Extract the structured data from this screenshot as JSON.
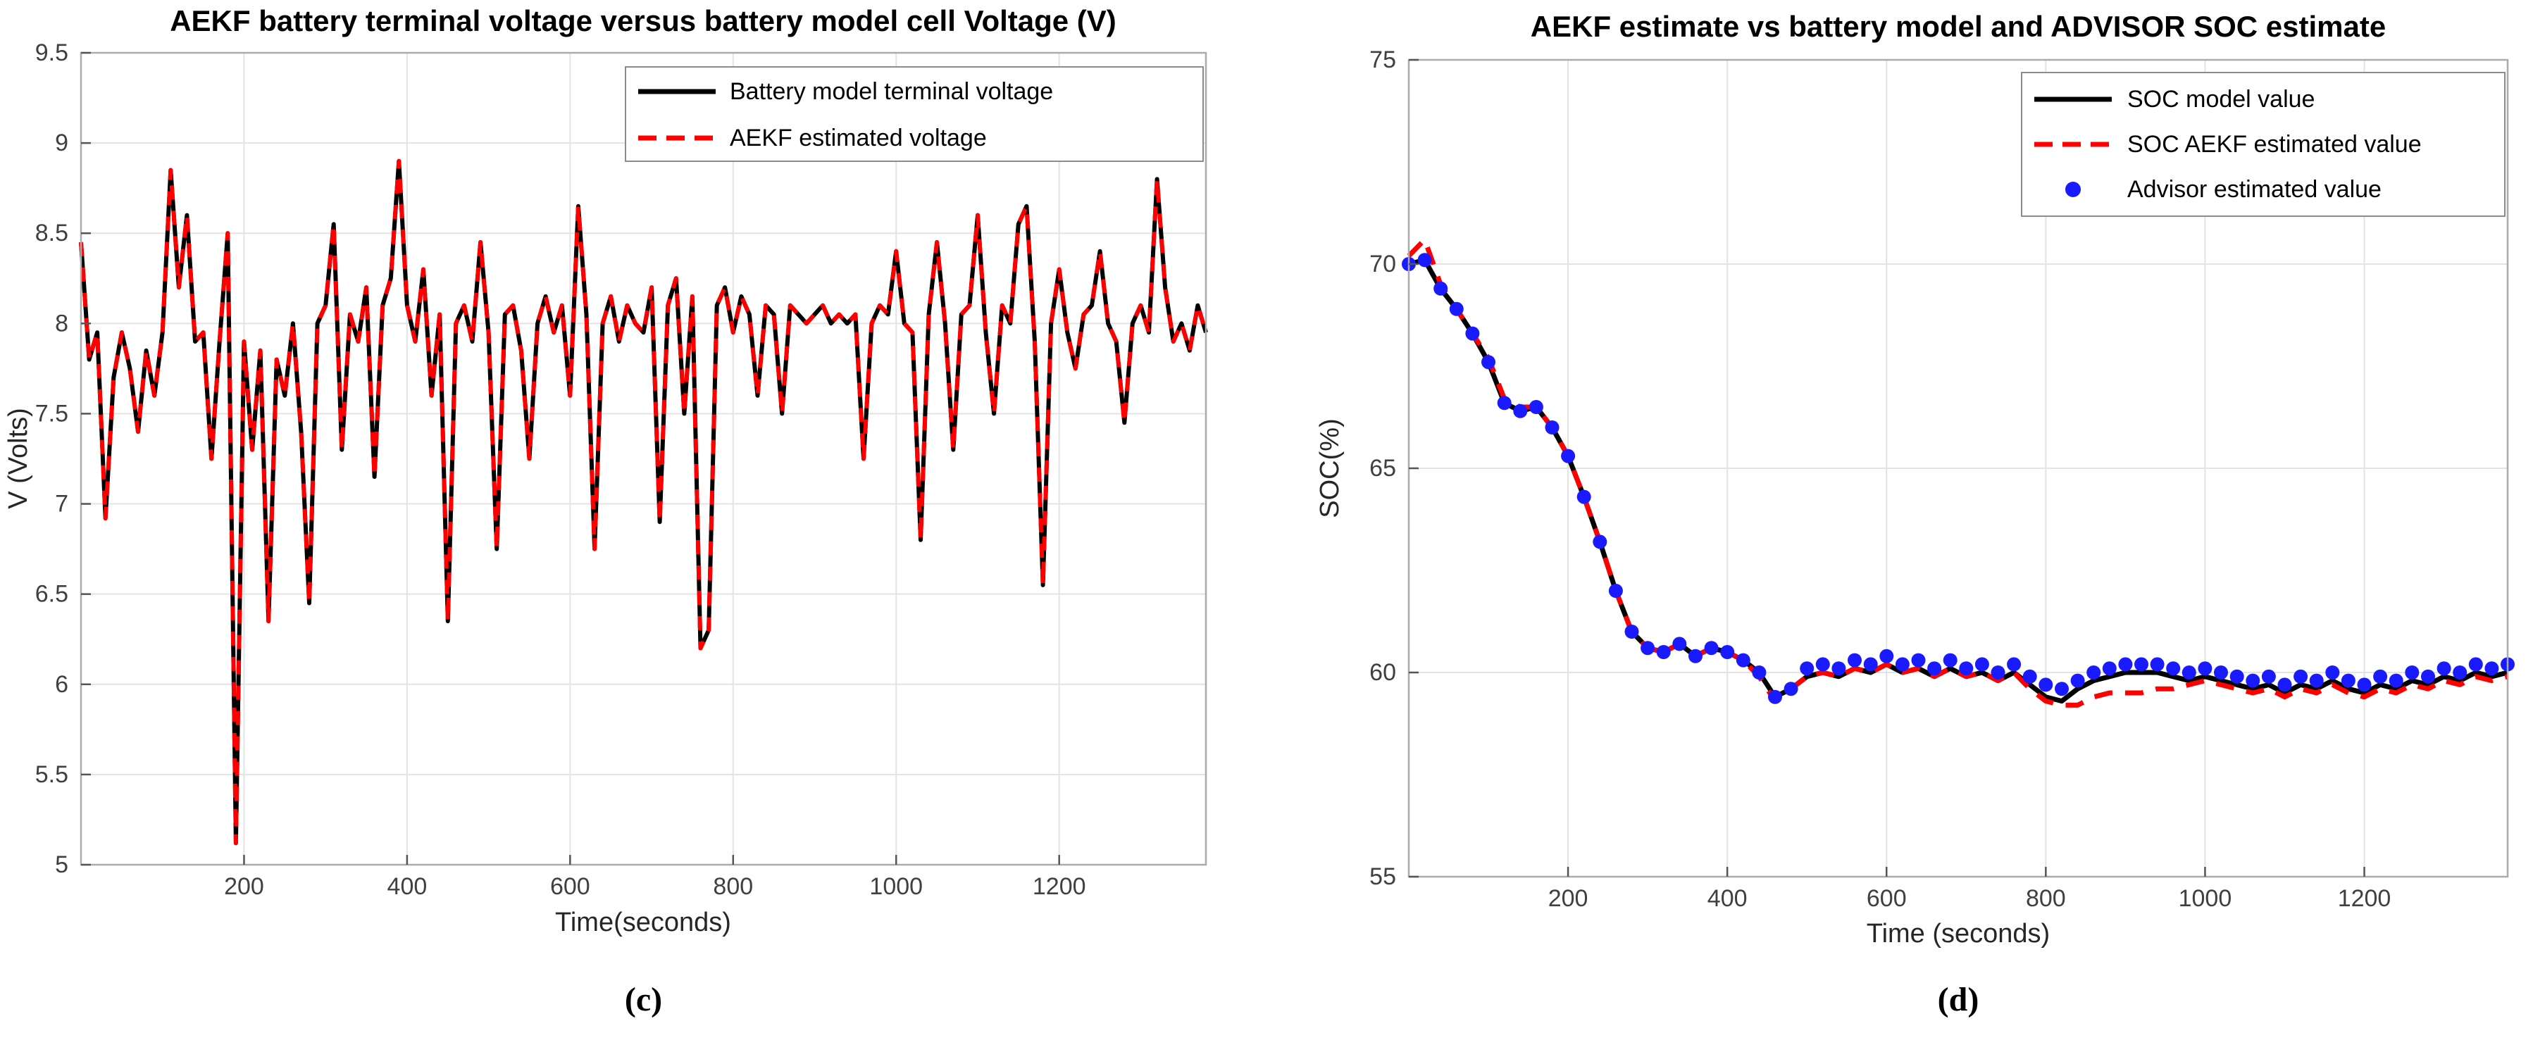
{
  "figures": [
    {
      "caption": "(c)"
    },
    {
      "caption": "(d)"
    }
  ],
  "colors": {
    "model_black": "#000000",
    "aekf_red": "#ff0000",
    "advisor_blue": "#1a1aff",
    "grid": "#e3e3e3",
    "frame": "#ababab",
    "tick_label": "#404040"
  },
  "chart_data": [
    {
      "type": "line",
      "title": "AEKF battery terminal voltage versus battery model cell Voltage (V)",
      "xlabel": "Time(seconds)",
      "ylabel": "V (Volts)",
      "xlim": [
        0,
        1380
      ],
      "ylim": [
        5,
        9.5
      ],
      "xticks": [
        200,
        400,
        600,
        800,
        1000,
        1200
      ],
      "yticks": [
        5,
        5.5,
        6,
        6.5,
        7,
        7.5,
        8,
        8.5,
        9,
        9.5
      ],
      "grid": true,
      "legend_position": "top-right",
      "x_start": 0,
      "x_step": 10,
      "series": [
        {
          "name": "Battery model terminal voltage",
          "color": "#000000",
          "style": "solid",
          "values": [
            8.45,
            7.8,
            7.95,
            6.92,
            7.7,
            7.95,
            7.75,
            7.4,
            7.85,
            7.6,
            7.95,
            8.85,
            8.2,
            8.6,
            7.9,
            7.95,
            7.25,
            7.9,
            8.5,
            5.12,
            7.9,
            7.3,
            7.85,
            6.35,
            7.8,
            7.6,
            8.0,
            7.4,
            6.45,
            8.0,
            8.1,
            8.55,
            7.3,
            8.05,
            7.9,
            8.2,
            7.15,
            8.1,
            8.25,
            8.9,
            8.1,
            7.9,
            8.3,
            7.6,
            8.05,
            6.35,
            8.0,
            8.1,
            7.9,
            8.45,
            7.95,
            6.75,
            8.05,
            8.1,
            7.85,
            7.25,
            8.0,
            8.15,
            7.95,
            8.1,
            7.6,
            8.65,
            8.05,
            6.75,
            8.0,
            8.15,
            7.9,
            8.1,
            8.0,
            7.95,
            8.2,
            6.9,
            8.1,
            8.25,
            7.5,
            8.15,
            6.2,
            6.3,
            8.1,
            8.2,
            7.95,
            8.15,
            8.05,
            7.6,
            8.1,
            8.05,
            7.5,
            8.1,
            8.05,
            8.0,
            8.05,
            8.1,
            8.0,
            8.05,
            8.0,
            8.05,
            7.25,
            8.0,
            8.1,
            8.05,
            8.4,
            8.0,
            7.95,
            6.8,
            8.05,
            8.45,
            8.0,
            7.3,
            8.05,
            8.1,
            8.6,
            7.95,
            7.5,
            8.1,
            8.0,
            8.55,
            8.65,
            7.9,
            6.55,
            8.0,
            8.3,
            7.95,
            7.75,
            8.05,
            8.1,
            8.4,
            8.0,
            7.9,
            7.45,
            8.0,
            8.1,
            7.95,
            8.8,
            8.2,
            7.9,
            8.0,
            7.85,
            8.1,
            7.95
          ]
        },
        {
          "name": "AEKF estimated voltage",
          "color": "#ff0000",
          "style": "dashed",
          "values_same_as_series": 0
        }
      ]
    },
    {
      "type": "line",
      "title": "AEKF estimate vs battery model and ADVISOR SOC estimate",
      "xlabel": "Time (seconds)",
      "ylabel": "SOC(%)",
      "xlim": [
        0,
        1380
      ],
      "ylim": [
        55,
        75
      ],
      "xticks": [
        200,
        400,
        600,
        800,
        1000,
        1200
      ],
      "yticks": [
        55,
        60,
        65,
        70,
        75
      ],
      "grid": true,
      "legend_position": "top-right",
      "x_start": 0,
      "x_step": 20,
      "series": [
        {
          "name": "SOC model value",
          "color": "#000000",
          "style": "solid",
          "values": [
            70.0,
            70.1,
            69.4,
            68.9,
            68.3,
            67.6,
            66.6,
            66.4,
            66.5,
            66.0,
            65.3,
            64.3,
            63.2,
            62.0,
            61.0,
            60.6,
            60.5,
            60.7,
            60.4,
            60.6,
            60.5,
            60.3,
            60.0,
            59.4,
            59.6,
            59.9,
            60.0,
            59.9,
            60.1,
            60.0,
            60.2,
            60.0,
            60.1,
            59.9,
            60.1,
            59.9,
            60.0,
            59.8,
            60.0,
            59.7,
            59.4,
            59.3,
            59.6,
            59.8,
            59.9,
            60.0,
            60.0,
            60.0,
            59.9,
            59.8,
            59.9,
            59.8,
            59.7,
            59.6,
            59.7,
            59.5,
            59.7,
            59.6,
            59.8,
            59.6,
            59.5,
            59.7,
            59.6,
            59.8,
            59.7,
            59.9,
            59.8,
            60.0,
            59.9,
            60.0
          ]
        },
        {
          "name": "SOC AEKF estimated value",
          "color": "#ff0000",
          "style": "dashed",
          "values": [
            70.2,
            70.6,
            69.5,
            68.9,
            68.3,
            67.7,
            66.7,
            66.5,
            66.5,
            66.0,
            65.3,
            64.3,
            63.2,
            62.0,
            61.0,
            60.6,
            60.5,
            60.7,
            60.4,
            60.6,
            60.5,
            60.3,
            59.9,
            59.3,
            59.6,
            59.9,
            60.0,
            59.9,
            60.1,
            60.0,
            60.2,
            60.0,
            60.1,
            59.9,
            60.1,
            59.9,
            60.0,
            59.8,
            60.0,
            59.6,
            59.3,
            59.2,
            59.2,
            59.4,
            59.5,
            59.5,
            59.5,
            59.6,
            59.6,
            59.7,
            59.8,
            59.7,
            59.6,
            59.5,
            59.6,
            59.4,
            59.6,
            59.5,
            59.7,
            59.5,
            59.4,
            59.6,
            59.5,
            59.7,
            59.6,
            59.8,
            59.7,
            59.9,
            59.8,
            59.9
          ]
        },
        {
          "name": "Advisor estimated value",
          "color": "#1a1aff",
          "style": "dots",
          "values": [
            70.0,
            70.1,
            69.4,
            68.9,
            68.3,
            67.6,
            66.6,
            66.4,
            66.5,
            66.0,
            65.3,
            64.3,
            63.2,
            62.0,
            61.0,
            60.6,
            60.5,
            60.7,
            60.4,
            60.6,
            60.5,
            60.3,
            60.0,
            59.4,
            59.6,
            60.1,
            60.2,
            60.1,
            60.3,
            60.2,
            60.4,
            60.2,
            60.3,
            60.1,
            60.3,
            60.1,
            60.2,
            60.0,
            60.2,
            59.9,
            59.7,
            59.6,
            59.8,
            60.0,
            60.1,
            60.2,
            60.2,
            60.2,
            60.1,
            60.0,
            60.1,
            60.0,
            59.9,
            59.8,
            59.9,
            59.7,
            59.9,
            59.8,
            60.0,
            59.8,
            59.7,
            59.9,
            59.8,
            60.0,
            59.9,
            60.1,
            60.0,
            60.2,
            60.1,
            60.2
          ]
        }
      ]
    }
  ]
}
